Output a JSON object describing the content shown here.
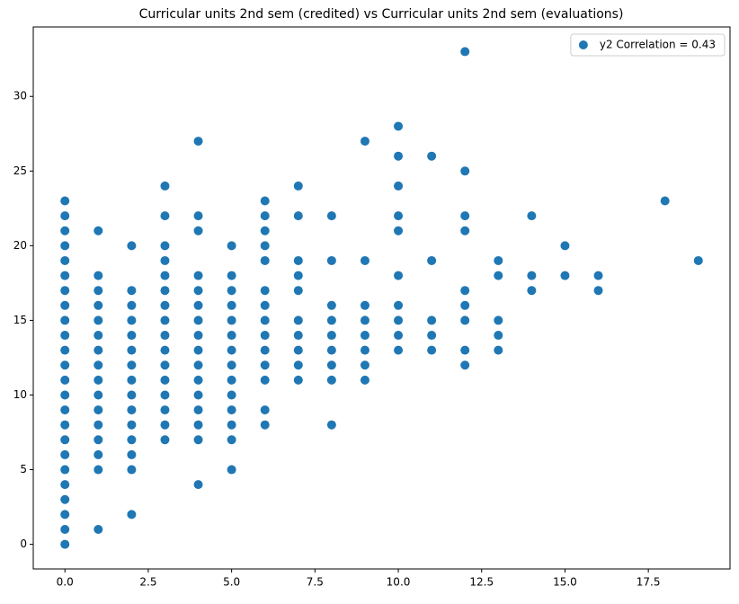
{
  "chart_data": {
    "type": "scatter",
    "title": "Curricular units 2nd sem (credited) vs Curricular units 2nd sem (evaluations)",
    "series": [
      {
        "name": "y2 Correlation = 0.43",
        "color": "#1f77b4",
        "x": [
          0,
          0,
          0,
          0,
          0,
          0,
          0,
          0,
          0,
          0,
          0,
          0,
          0,
          0,
          0,
          0,
          0,
          0,
          0,
          0,
          0,
          0,
          0,
          0,
          1,
          1,
          1,
          1,
          1,
          1,
          1,
          1,
          1,
          1,
          1,
          1,
          1,
          1,
          1,
          1,
          2,
          2,
          2,
          2,
          2,
          2,
          2,
          2,
          2,
          2,
          2,
          2,
          2,
          2,
          2,
          3,
          3,
          3,
          3,
          3,
          3,
          3,
          3,
          3,
          3,
          3,
          3,
          3,
          3,
          3,
          3,
          4,
          4,
          4,
          4,
          4,
          4,
          4,
          4,
          4,
          4,
          4,
          4,
          4,
          4,
          4,
          4,
          5,
          5,
          5,
          5,
          5,
          5,
          5,
          5,
          5,
          5,
          5,
          5,
          5,
          5,
          6,
          6,
          6,
          6,
          6,
          6,
          6,
          6,
          6,
          6,
          6,
          6,
          6,
          6,
          7,
          7,
          7,
          7,
          7,
          7,
          7,
          7,
          7,
          7,
          8,
          8,
          8,
          8,
          8,
          8,
          8,
          8,
          8,
          9,
          9,
          9,
          9,
          9,
          9,
          9,
          9,
          10,
          10,
          10,
          10,
          10,
          10,
          10,
          10,
          10,
          10,
          11,
          11,
          11,
          11,
          11,
          12,
          12,
          12,
          12,
          12,
          12,
          12,
          12,
          12,
          13,
          13,
          13,
          13,
          13,
          14,
          14,
          14,
          15,
          15,
          16,
          16,
          18,
          19
        ],
        "values": [
          0,
          1,
          2,
          3,
          4,
          5,
          6,
          7,
          8,
          9,
          10,
          11,
          12,
          13,
          14,
          15,
          16,
          17,
          18,
          19,
          20,
          21,
          22,
          23,
          1,
          5,
          6,
          7,
          8,
          9,
          10,
          11,
          12,
          13,
          14,
          15,
          16,
          17,
          18,
          21,
          2,
          5,
          6,
          7,
          8,
          9,
          10,
          11,
          12,
          13,
          14,
          15,
          16,
          17,
          20,
          7,
          8,
          9,
          10,
          11,
          12,
          13,
          14,
          15,
          16,
          17,
          18,
          19,
          20,
          22,
          24,
          4,
          7,
          8,
          9,
          10,
          11,
          12,
          13,
          14,
          15,
          16,
          17,
          18,
          21,
          22,
          27,
          5,
          7,
          8,
          9,
          10,
          11,
          12,
          13,
          14,
          15,
          16,
          17,
          18,
          20,
          8,
          9,
          11,
          12,
          13,
          14,
          15,
          16,
          17,
          19,
          20,
          21,
          22,
          23,
          11,
          12,
          13,
          14,
          15,
          17,
          18,
          19,
          22,
          24,
          8,
          11,
          12,
          13,
          14,
          15,
          16,
          19,
          22,
          11,
          12,
          13,
          14,
          15,
          16,
          19,
          27,
          13,
          14,
          15,
          16,
          18,
          21,
          22,
          24,
          26,
          28,
          13,
          14,
          15,
          19,
          26,
          12,
          13,
          15,
          16,
          17,
          21,
          22,
          25,
          33,
          13,
          14,
          15,
          18,
          19,
          17,
          18,
          22,
          18,
          20,
          17,
          18,
          23,
          19
        ]
      }
    ],
    "xlim": [
      -0.95,
      19.95
    ],
    "ylim": [
      -1.65,
      34.65
    ],
    "xticks": [
      {
        "value": 0,
        "label": "0.0"
      },
      {
        "value": 2.5,
        "label": "2.5"
      },
      {
        "value": 5,
        "label": "5.0"
      },
      {
        "value": 7.5,
        "label": "7.5"
      },
      {
        "value": 10,
        "label": "10.0"
      },
      {
        "value": 12.5,
        "label": "12.5"
      },
      {
        "value": 15,
        "label": "15.0"
      },
      {
        "value": 17.5,
        "label": "17.5"
      }
    ],
    "yticks": [
      0,
      5,
      10,
      15,
      20,
      25,
      30
    ],
    "legend": "upper right"
  }
}
